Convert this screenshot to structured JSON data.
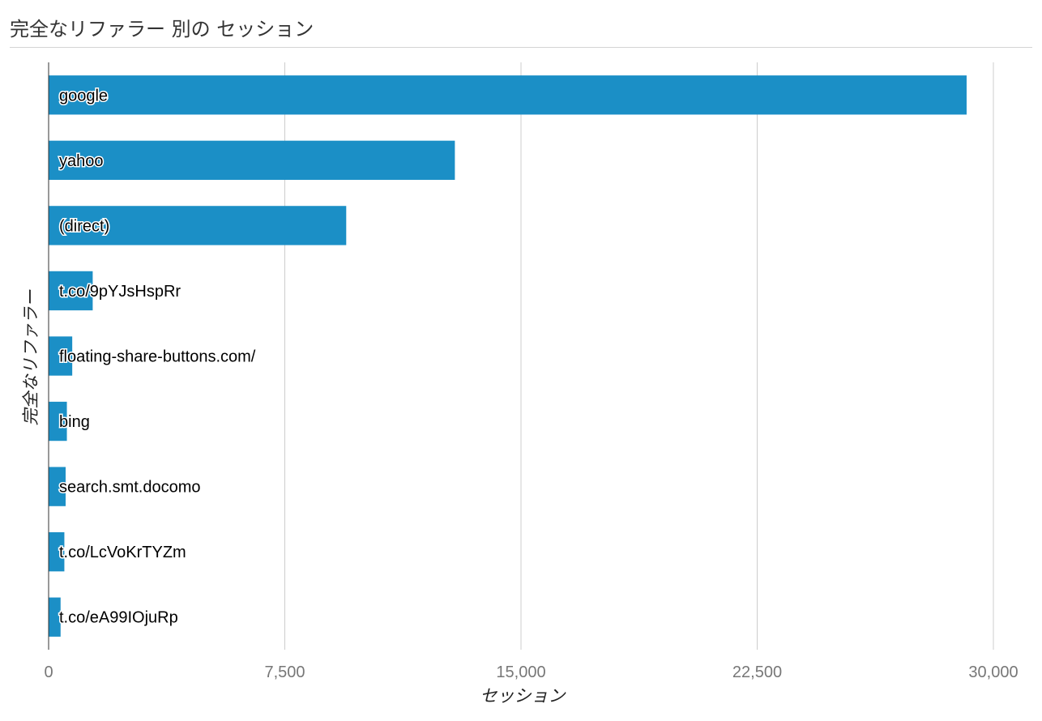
{
  "title": "完全なリファラー 別の セッション",
  "chart_data": {
    "type": "bar",
    "orientation": "horizontal",
    "title": "完全なリファラー 別の セッション",
    "xlabel": "セッション",
    "ylabel": "完全なリファラー",
    "categories": [
      "google",
      "yahoo",
      "(direct)",
      "t.co/9pYJsHspRr",
      "floating-share-buttons.com/",
      "bing",
      "search.smt.docomo",
      "t.co/LcVoKrTYZm",
      "t.co/eA99IOjuRp"
    ],
    "values": [
      29150,
      12900,
      9450,
      1400,
      750,
      580,
      540,
      500,
      380
    ],
    "xlim": [
      0,
      30000
    ],
    "xticks": [
      0,
      7500,
      15000,
      22500,
      30000
    ],
    "xtick_labels": [
      "0",
      "7,500",
      "15,000",
      "22,500",
      "30,000"
    ],
    "grid": true,
    "bar_color": "#1b8fc6"
  }
}
